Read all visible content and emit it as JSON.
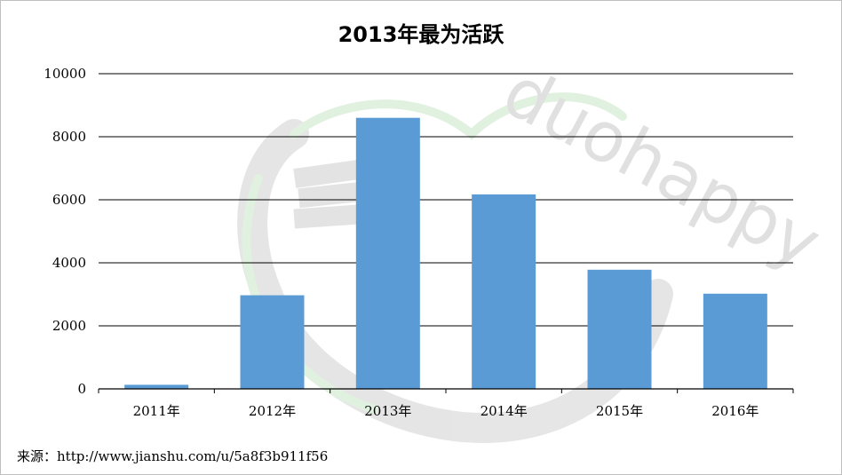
{
  "chart_data": {
    "type": "bar",
    "title": "2013年最为活跃",
    "categories": [
      "2011年",
      "2012年",
      "2013年",
      "2014年",
      "2015年",
      "2016年"
    ],
    "values": [
      130,
      2970,
      8600,
      6170,
      3780,
      3020
    ],
    "ylim": [
      0,
      10000
    ],
    "yticks": [
      0,
      2000,
      4000,
      6000,
      8000,
      10000
    ],
    "grid": true,
    "bar_color": "#5b9bd5"
  },
  "source": "来源：http://www.jianshu.com/u/5a8f3b911f56",
  "watermark": "duohappy"
}
